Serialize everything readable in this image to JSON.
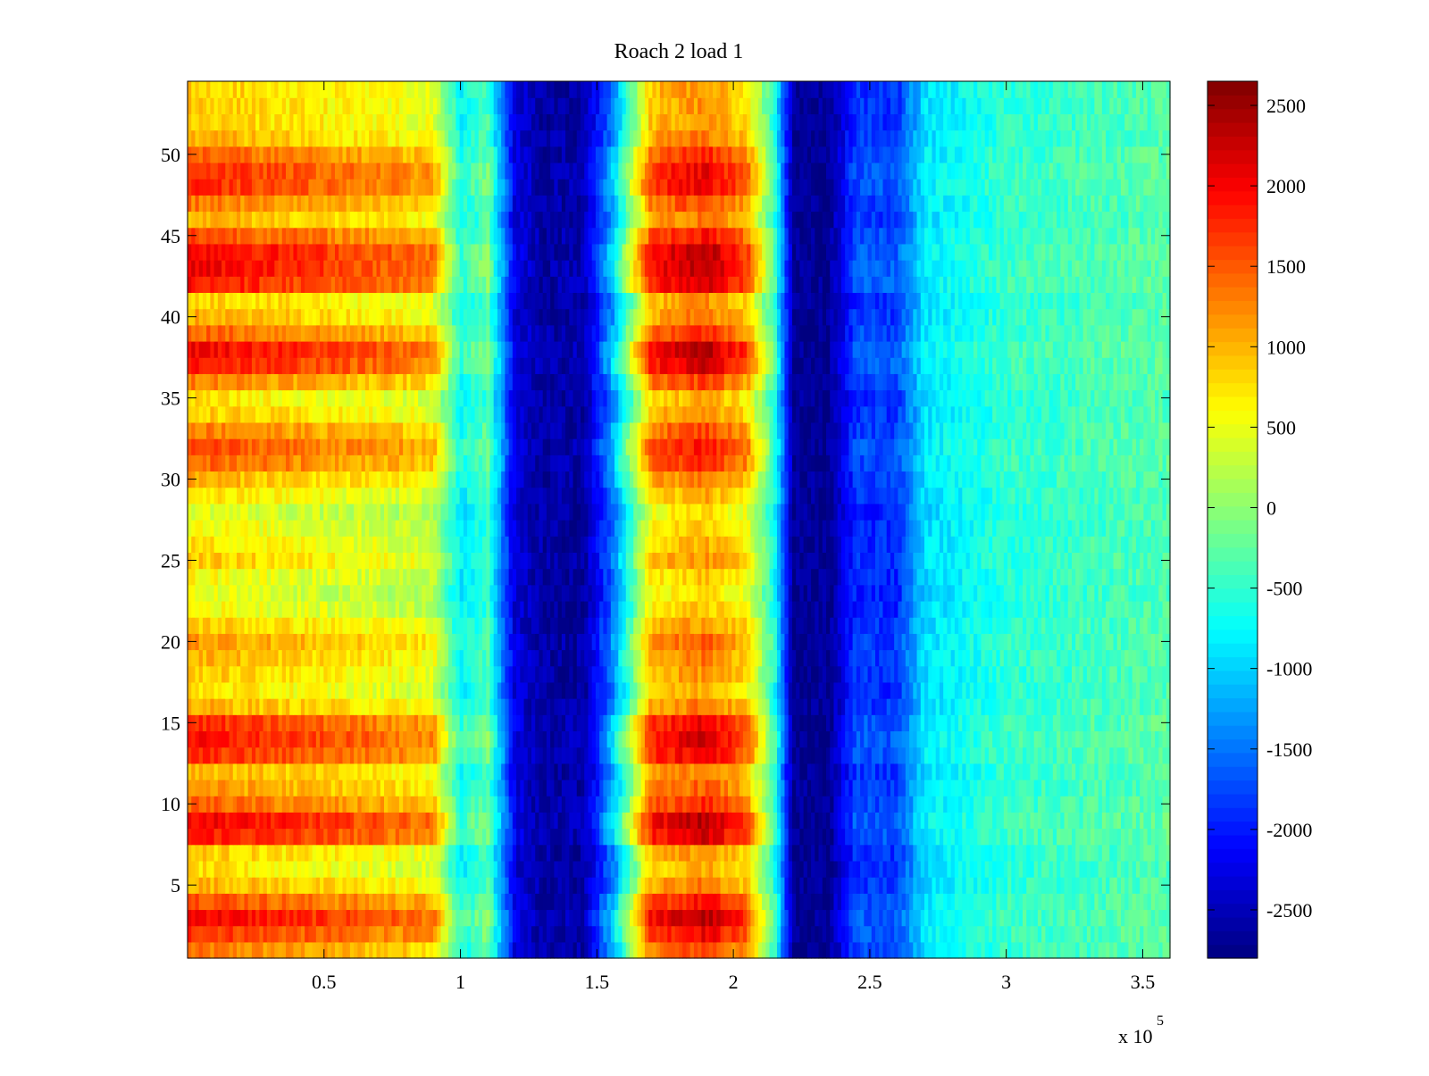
{
  "chart_data": {
    "type": "heatmap",
    "title": "Roach 2 load 1",
    "xlabel": "",
    "ylabel": "",
    "x_multiplier_label": "x 10",
    "x_multiplier_exponent": "5",
    "xlim": [
      0,
      360000
    ],
    "ylim": [
      0.5,
      54.5
    ],
    "x_ticks": [
      50000,
      100000,
      150000,
      200000,
      250000,
      300000,
      350000
    ],
    "x_tick_labels": [
      "0.5",
      "1",
      "1.5",
      "2",
      "2.5",
      "3",
      "3.5"
    ],
    "y_ticks": [
      5,
      10,
      15,
      20,
      25,
      30,
      35,
      40,
      45,
      50
    ],
    "y_tick_labels": [
      "5",
      "10",
      "15",
      "20",
      "25",
      "30",
      "35",
      "40",
      "45",
      "50"
    ],
    "rows": 54,
    "colorbar": {
      "colormap": "jet",
      "clim": [
        -2800,
        2650
      ],
      "ticks": [
        -2500,
        -2000,
        -1500,
        -1000,
        -500,
        0,
        500,
        1000,
        1500,
        2000,
        2500
      ],
      "tick_labels": [
        "-2500",
        "-2000",
        "-1500",
        "-1000",
        "-500",
        "0",
        "500",
        "1000",
        "1500",
        "2000",
        "2500"
      ]
    },
    "column_profile": {
      "x": [
        0,
        90000,
        100000,
        110000,
        120000,
        130000,
        145000,
        155000,
        170000,
        190000,
        205000,
        215000,
        222000,
        235000,
        245000,
        260000,
        270000,
        300000,
        360000
      ],
      "base_value": [
        1200,
        700,
        -700,
        -300,
        -2300,
        -2600,
        -2600,
        -1400,
        1200,
        1500,
        1000,
        -500,
        -2700,
        -2700,
        -1800,
        -1800,
        -900,
        -500,
        -300
      ],
      "row_modulation": [
        900,
        700,
        250,
        300,
        100,
        0,
        100,
        400,
        800,
        900,
        700,
        250,
        0,
        0,
        200,
        200,
        100,
        80,
        60
      ]
    },
    "row_strength": [
      0.5,
      0.8,
      1.0,
      0.7,
      0.3,
      0.1,
      0.2,
      0.9,
      1.0,
      0.6,
      0.4,
      0.3,
      0.8,
      0.9,
      0.8,
      0.3,
      0.1,
      0.2,
      0.3,
      0.4,
      0.2,
      0.0,
      -0.1,
      0.0,
      0.2,
      0.1,
      0.0,
      -0.1,
      0.1,
      0.3,
      0.6,
      0.7,
      0.5,
      0.2,
      0.1,
      0.5,
      0.9,
      1.0,
      0.6,
      0.3,
      0.2,
      0.9,
      1.0,
      1.0,
      0.7,
      0.3,
      0.5,
      0.8,
      0.8,
      0.6,
      0.3,
      0.2,
      0.2,
      0.2
    ]
  }
}
